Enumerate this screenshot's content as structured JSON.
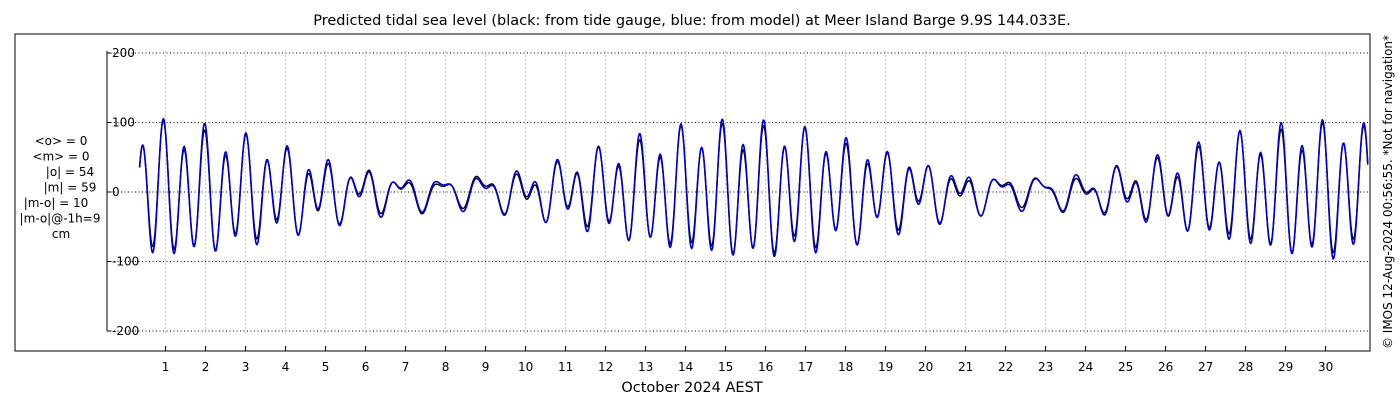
{
  "chart_data": {
    "type": "line",
    "title": "Predicted tidal sea level (black: from tide gauge, blue: from model) at Meer Island Barge 9.9S 144.033E.",
    "xlabel": "October 2024 AEST",
    "ylabel": "",
    "x_ticks": [
      "1",
      "2",
      "3",
      "4",
      "5",
      "6",
      "7",
      "8",
      "9",
      "10",
      "11",
      "12",
      "13",
      "14",
      "15",
      "16",
      "17",
      "18",
      "19",
      "20",
      "21",
      "22",
      "23",
      "24",
      "25",
      "26",
      "27",
      "28",
      "29",
      "30"
    ],
    "x_range_days": [
      0.35,
      31.15
    ],
    "y_ticks": [
      200,
      100,
      0,
      -100,
      -200
    ],
    "y_tick_labels": [
      "200",
      "100",
      "0",
      "-100",
      "-200"
    ],
    "ylim": [
      -230,
      230
    ],
    "grid": true,
    "legend": "none",
    "series": [
      {
        "color": "#000000",
        "values": []
      },
      {
        "color": "#0000cc",
        "values": []
      }
    ],
    "stats": [
      "<o> = 0",
      "<m> = 0",
      "|o| = 54",
      "|m| = 59",
      "|m-o| = 10",
      "|m-o|@-1h=9",
      "cm"
    ],
    "side_note": "© IMOS 12-Aug-2024 00:56:55. *Not for navigation*"
  }
}
